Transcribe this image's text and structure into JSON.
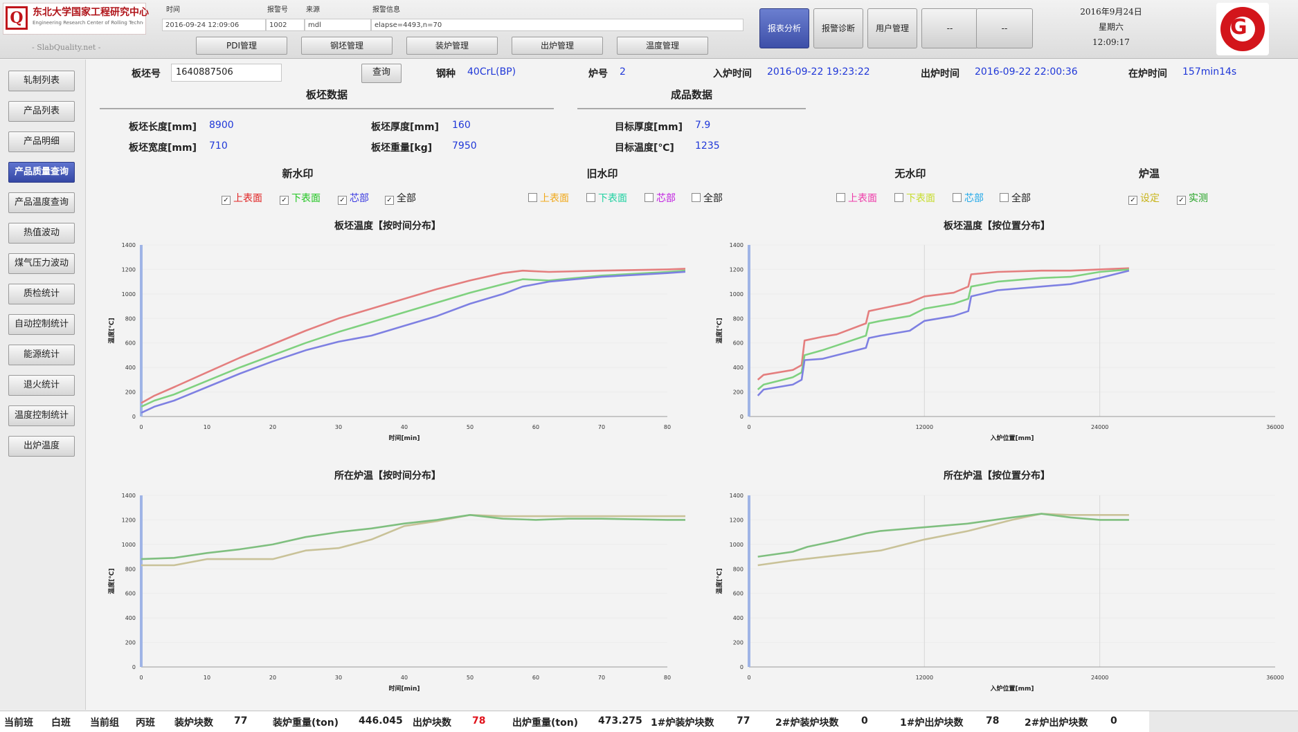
{
  "header": {
    "logo_text": "东北大学国家工程研究中心",
    "logo_sub": "Engineering Research Center of Rolling Technology",
    "slogan": "- SlabQuality.net -",
    "info_headers": [
      "时间",
      "报警号",
      "来源",
      "报警信息"
    ],
    "info_values": [
      "2016-09-24 12:09:06",
      "1002",
      "mdl",
      "elapse=4493,n=70"
    ],
    "mgmt_buttons": [
      "PDI管理",
      "钢坯管理",
      "装炉管理",
      "出炉管理",
      "温度管理"
    ],
    "big_buttons": [
      "报表分析",
      "报警诊断",
      "用户管理",
      "--",
      "--"
    ],
    "date": "2016年9月24日",
    "weekday": "星期六",
    "time": "12:09:17",
    "brand_letter": "G"
  },
  "sidebar": {
    "items": [
      "轧制列表",
      "产品列表",
      "产品明细",
      "产品质量查询",
      "产品温度查询",
      "热值波动",
      "煤气压力波动",
      "质检统计",
      "自动控制统计",
      "能源统计",
      "退火统计",
      "温度控制统计",
      "出炉温度"
    ],
    "active_index": 3
  },
  "query": {
    "slab_no_label": "板坯号",
    "slab_no_value": "1640887506",
    "query_button": "查询",
    "steel_label": "钢种",
    "steel_value": "40CrL(BP)",
    "furnace_label": "炉号",
    "furnace_value": "2",
    "in_time_label": "入炉时间",
    "in_time_value": "2016-09-22 19:23:22",
    "out_time_label": "出炉时间",
    "out_time_value": "2016-09-22 22:00:36",
    "duration_label": "在炉时间",
    "duration_value": "157min14s"
  },
  "slab_data": {
    "title": "板坯数据",
    "length_label": "板坯长度[mm]",
    "length_value": "8900",
    "width_label": "板坯宽度[mm]",
    "width_value": "710",
    "thickness_label": "板坯厚度[mm]",
    "thickness_value": "160",
    "weight_label": "板坯重量[kg]",
    "weight_value": "7950"
  },
  "product_data": {
    "title": "成品数据",
    "target_thickness_label": "目标厚度[mm]",
    "target_thickness_value": "7.9",
    "target_temp_label": "目标温度[℃]",
    "target_temp_value": "1235"
  },
  "checkgroups": [
    {
      "title": "新水印",
      "items": [
        {
          "label": "上表面",
          "color": "#e02222",
          "checked": true
        },
        {
          "label": "下表面",
          "color": "#22c522",
          "checked": true
        },
        {
          "label": "芯部",
          "color": "#3a3ae0",
          "checked": true
        },
        {
          "label": "全部",
          "color": "#222222",
          "checked": true
        }
      ]
    },
    {
      "title": "旧水印",
      "items": [
        {
          "label": "上表面",
          "color": "#f0a81a",
          "checked": false
        },
        {
          "label": "下表面",
          "color": "#1ed0a0",
          "checked": false
        },
        {
          "label": "芯部",
          "color": "#c020e0",
          "checked": false
        },
        {
          "label": "全部",
          "color": "#222222",
          "checked": false
        }
      ]
    },
    {
      "title": "无水印",
      "items": [
        {
          "label": "上表面",
          "color": "#ee3aa8",
          "checked": false
        },
        {
          "label": "下表面",
          "color": "#c6dc2a",
          "checked": false
        },
        {
          "label": "芯部",
          "color": "#20a8e8",
          "checked": false
        },
        {
          "label": "全部",
          "color": "#222222",
          "checked": false
        }
      ]
    },
    {
      "title": "炉温",
      "items": [
        {
          "label": "设定",
          "color": "#c8b41a",
          "checked": true
        },
        {
          "label": "实测",
          "color": "#1ea01e",
          "checked": true
        }
      ]
    }
  ],
  "charts": {
    "titles": [
      "板坯温度【按时间分布】",
      "板坯温度【按位置分布】",
      "所在炉温【按时间分布】",
      "所在炉温【按位置分布】"
    ],
    "xlabels": [
      "时间[min]",
      "入炉位置[mm]",
      "时间[min]",
      "入炉位置[mm]"
    ],
    "ylabel": "温度[℃]"
  },
  "chart_data": [
    {
      "type": "line",
      "title": "板坯温度【按时间分布】",
      "xlabel": "时间[min]",
      "ylabel": "温度[℃]",
      "xlim": [
        0,
        80
      ],
      "ylim": [
        0,
        1400
      ],
      "xticks": [
        0,
        10,
        20,
        30,
        40,
        50,
        60,
        70,
        80
      ],
      "yticks": [
        0,
        200,
        400,
        600,
        800,
        1000,
        1200,
        1400
      ],
      "series": [
        {
          "name": "上表面",
          "color": "#e47e7e",
          "points": [
            [
              0,
              110
            ],
            [
              2,
              170
            ],
            [
              5,
              240
            ],
            [
              10,
              360
            ],
            [
              15,
              480
            ],
            [
              20,
              590
            ],
            [
              25,
              700
            ],
            [
              30,
              800
            ],
            [
              35,
              880
            ],
            [
              40,
              960
            ],
            [
              45,
              1040
            ],
            [
              50,
              1110
            ],
            [
              55,
              1170
            ],
            [
              58,
              1190
            ],
            [
              62,
              1180
            ],
            [
              70,
              1190
            ],
            [
              80,
              1200
            ],
            [
              85,
              1210
            ],
            [
              92,
              1210
            ]
          ]
        },
        {
          "name": "下表面",
          "color": "#7fd17f",
          "points": [
            [
              0,
              80
            ],
            [
              2,
              130
            ],
            [
              5,
              180
            ],
            [
              10,
              290
            ],
            [
              15,
              400
            ],
            [
              20,
              500
            ],
            [
              25,
              600
            ],
            [
              30,
              690
            ],
            [
              35,
              770
            ],
            [
              40,
              850
            ],
            [
              45,
              930
            ],
            [
              50,
              1010
            ],
            [
              55,
              1080
            ],
            [
              58,
              1120
            ],
            [
              62,
              1110
            ],
            [
              70,
              1150
            ],
            [
              80,
              1180
            ],
            [
              85,
              1200
            ],
            [
              92,
              1205
            ]
          ]
        },
        {
          "name": "芯部",
          "color": "#7e80e2",
          "points": [
            [
              0,
              30
            ],
            [
              2,
              80
            ],
            [
              5,
              130
            ],
            [
              10,
              240
            ],
            [
              15,
              350
            ],
            [
              20,
              450
            ],
            [
              25,
              540
            ],
            [
              30,
              610
            ],
            [
              35,
              660
            ],
            [
              40,
              740
            ],
            [
              45,
              820
            ],
            [
              50,
              920
            ],
            [
              55,
              1000
            ],
            [
              58,
              1060
            ],
            [
              62,
              1100
            ],
            [
              70,
              1140
            ],
            [
              80,
              1170
            ],
            [
              85,
              1190
            ],
            [
              92,
              1195
            ]
          ]
        }
      ]
    },
    {
      "type": "line",
      "title": "板坯温度【按位置分布】",
      "xlabel": "入炉位置[mm]",
      "ylabel": "温度[℃]",
      "xlim": [
        0,
        36000
      ],
      "ylim": [
        0,
        1400
      ],
      "xticks": [
        0,
        12000,
        24000,
        36000
      ],
      "yticks": [
        0,
        200,
        400,
        600,
        800,
        1000,
        1200,
        1400
      ],
      "series": [
        {
          "name": "上表面",
          "color": "#e47e7e",
          "points": [
            [
              600,
              300
            ],
            [
              1000,
              340
            ],
            [
              3000,
              380
            ],
            [
              3600,
              420
            ],
            [
              3800,
              620
            ],
            [
              5000,
              650
            ],
            [
              6000,
              670
            ],
            [
              8000,
              760
            ],
            [
              8200,
              860
            ],
            [
              9000,
              880
            ],
            [
              11000,
              930
            ],
            [
              12000,
              980
            ],
            [
              14000,
              1010
            ],
            [
              15000,
              1060
            ],
            [
              15200,
              1160
            ],
            [
              17000,
              1180
            ],
            [
              20000,
              1190
            ],
            [
              22000,
              1190
            ],
            [
              24000,
              1200
            ],
            [
              26000,
              1210
            ]
          ]
        },
        {
          "name": "下表面",
          "color": "#7fd17f",
          "points": [
            [
              600,
              220
            ],
            [
              1000,
              260
            ],
            [
              3000,
              320
            ],
            [
              3600,
              360
            ],
            [
              3800,
              500
            ],
            [
              5000,
              540
            ],
            [
              6000,
              580
            ],
            [
              8000,
              660
            ],
            [
              8200,
              760
            ],
            [
              9000,
              780
            ],
            [
              11000,
              820
            ],
            [
              12000,
              880
            ],
            [
              14000,
              920
            ],
            [
              15000,
              960
            ],
            [
              15200,
              1060
            ],
            [
              17000,
              1100
            ],
            [
              20000,
              1130
            ],
            [
              22000,
              1140
            ],
            [
              24000,
              1180
            ],
            [
              26000,
              1200
            ]
          ]
        },
        {
          "name": "芯部",
          "color": "#7e80e2",
          "points": [
            [
              600,
              170
            ],
            [
              1000,
              220
            ],
            [
              3000,
              260
            ],
            [
              3600,
              300
            ],
            [
              3800,
              460
            ],
            [
              5000,
              470
            ],
            [
              6000,
              500
            ],
            [
              8000,
              560
            ],
            [
              8200,
              640
            ],
            [
              9000,
              660
            ],
            [
              11000,
              700
            ],
            [
              12000,
              780
            ],
            [
              14000,
              820
            ],
            [
              15000,
              860
            ],
            [
              15200,
              980
            ],
            [
              17000,
              1030
            ],
            [
              20000,
              1060
            ],
            [
              22000,
              1080
            ],
            [
              24000,
              1130
            ],
            [
              26000,
              1190
            ]
          ]
        }
      ]
    },
    {
      "type": "line",
      "title": "所在炉温【按时间分布】",
      "xlabel": "时间[min]",
      "ylabel": "温度[℃]",
      "xlim": [
        0,
        80
      ],
      "ylim": [
        0,
        1400
      ],
      "xticks": [
        0,
        10,
        20,
        30,
        40,
        50,
        60,
        70,
        80
      ],
      "yticks": [
        0,
        200,
        400,
        600,
        800,
        1000,
        1200,
        1400
      ],
      "series": [
        {
          "name": "设定",
          "color": "#c9c298",
          "points": [
            [
              0,
              830
            ],
            [
              5,
              830
            ],
            [
              10,
              880
            ],
            [
              15,
              880
            ],
            [
              20,
              880
            ],
            [
              25,
              950
            ],
            [
              30,
              970
            ],
            [
              35,
              1040
            ],
            [
              40,
              1150
            ],
            [
              45,
              1190
            ],
            [
              50,
              1240
            ],
            [
              55,
              1230
            ],
            [
              60,
              1230
            ],
            [
              65,
              1230
            ],
            [
              70,
              1230
            ],
            [
              80,
              1230
            ],
            [
              85,
              1230
            ],
            [
              92,
              1230
            ]
          ]
        },
        {
          "name": "实测",
          "color": "#7fbf7f",
          "points": [
            [
              0,
              880
            ],
            [
              5,
              890
            ],
            [
              10,
              930
            ],
            [
              15,
              960
            ],
            [
              20,
              1000
            ],
            [
              25,
              1060
            ],
            [
              30,
              1100
            ],
            [
              35,
              1130
            ],
            [
              40,
              1170
            ],
            [
              45,
              1200
            ],
            [
              50,
              1240
            ],
            [
              55,
              1210
            ],
            [
              60,
              1200
            ],
            [
              65,
              1210
            ],
            [
              70,
              1210
            ],
            [
              80,
              1200
            ],
            [
              85,
              1200
            ],
            [
              92,
              1210
            ]
          ]
        }
      ]
    },
    {
      "type": "line",
      "title": "所在炉温【按位置分布】",
      "xlabel": "入炉位置[mm]",
      "ylabel": "温度[℃]",
      "xlim": [
        0,
        36000
      ],
      "ylim": [
        0,
        1400
      ],
      "xticks": [
        0,
        12000,
        24000,
        36000
      ],
      "yticks": [
        0,
        200,
        400,
        600,
        800,
        1000,
        1200,
        1400
      ],
      "series": [
        {
          "name": "设定",
          "color": "#c9c298",
          "points": [
            [
              600,
              830
            ],
            [
              3000,
              870
            ],
            [
              6000,
              910
            ],
            [
              9000,
              950
            ],
            [
              12000,
              1040
            ],
            [
              15000,
              1110
            ],
            [
              18000,
              1200
            ],
            [
              20000,
              1250
            ],
            [
              22000,
              1240
            ],
            [
              24000,
              1240
            ],
            [
              26000,
              1240
            ]
          ]
        },
        {
          "name": "实测",
          "color": "#7fbf7f",
          "points": [
            [
              600,
              900
            ],
            [
              3000,
              940
            ],
            [
              4000,
              980
            ],
            [
              6000,
              1030
            ],
            [
              8000,
              1090
            ],
            [
              9000,
              1110
            ],
            [
              12000,
              1140
            ],
            [
              15000,
              1170
            ],
            [
              18000,
              1220
            ],
            [
              20000,
              1250
            ],
            [
              22000,
              1220
            ],
            [
              24000,
              1200
            ],
            [
              26000,
              1200
            ]
          ]
        }
      ]
    }
  ],
  "status": {
    "shift_label": "当前班",
    "shift_value": "白班",
    "group_label": "当前组",
    "group_value": "丙班",
    "charge_count_label": "装炉块数",
    "charge_count_value": "77",
    "charge_weight_label": "装炉重量(ton)",
    "charge_weight_value": "446.045",
    "discharge_count_label": "出炉块数",
    "discharge_count_value": "78",
    "discharge_weight_label": "出炉重量(ton)",
    "discharge_weight_value": "473.275",
    "f1_charge_label": "1#炉装炉块数",
    "f1_charge_value": "77",
    "f2_charge_label": "2#炉装炉块数",
    "f2_charge_value": "0",
    "f1_discharge_label": "1#炉出炉块数",
    "f1_discharge_value": "78",
    "f2_discharge_label": "2#炉出炉块数",
    "f2_discharge_value": "0"
  }
}
